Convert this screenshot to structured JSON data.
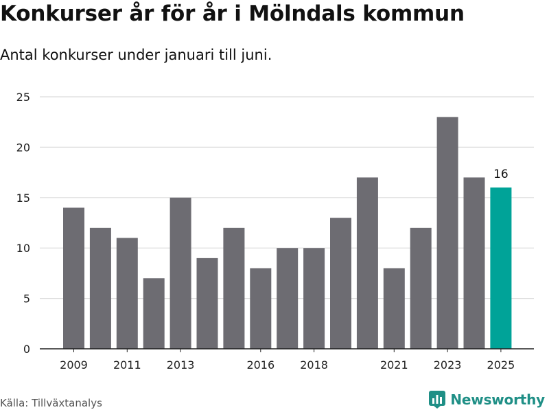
{
  "title": "Konkurser år för år i Mölndals kommun",
  "subtitle": "Antal konkurser under januari till juni.",
  "source": "Källa: Tillväxtanalys",
  "brand": "Newsworthy",
  "colors": {
    "bar": "#6d6c72",
    "highlight": "#00a398",
    "grid": "#dcdcdc",
    "brand": "#1f8f86"
  },
  "chart_data": {
    "type": "bar",
    "title": "Konkurser år för år i Mölndals kommun",
    "subtitle": "Antal konkurser under januari till juni.",
    "xlabel": "",
    "ylabel": "",
    "ylim": [
      0,
      25
    ],
    "yticks": [
      0,
      5,
      10,
      15,
      20,
      25
    ],
    "grid": true,
    "categories": [
      "2009",
      "2010",
      "2011",
      "2012",
      "2013",
      "2014",
      "2015",
      "2016",
      "2017",
      "2018",
      "2019",
      "2020",
      "2021",
      "2022",
      "2023",
      "2024",
      "2025"
    ],
    "values": [
      14,
      12,
      11,
      7,
      15,
      9,
      12,
      8,
      10,
      10,
      13,
      17,
      8,
      12,
      23,
      17,
      16
    ],
    "xtick_labels": [
      "2009",
      "2011",
      "2013",
      "2016",
      "2018",
      "2021",
      "2023",
      "2025"
    ],
    "highlight": "2025",
    "data_labels": [
      {
        "category": "2025",
        "value": 16
      }
    ]
  }
}
